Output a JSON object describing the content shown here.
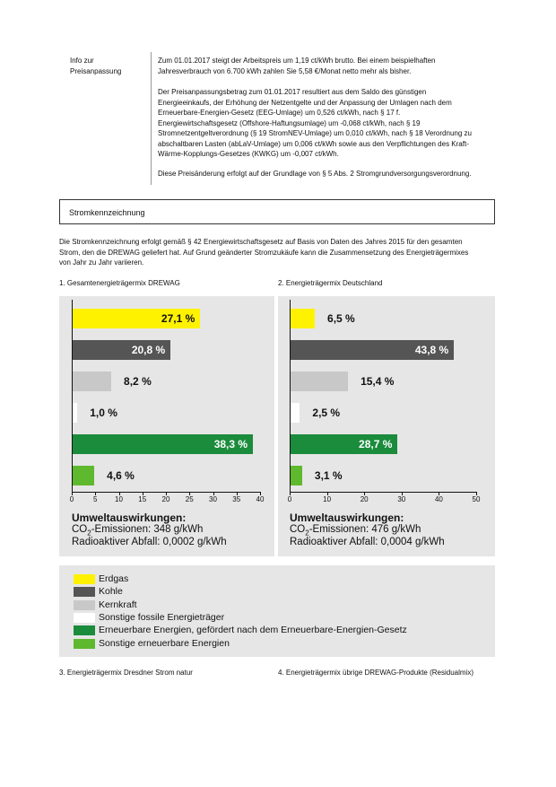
{
  "info": {
    "label_line1": "Info zur",
    "label_line2": "Preisanpassung",
    "p1": [
      "Zum 01.01.2017 steigt der Arbeitspreis um 1,19 ct/kWh brutto. Bei einem beispielhaften",
      "Jahresverbrauch von 6.700 kWh zahlen Sie 5,58 €/Monat netto mehr als bisher."
    ],
    "p2": [
      "Der Preisanpassungsbetrag zum 01.01.2017 resultiert aus dem Saldo des günstigen",
      "Energieeinkaufs, der Erhöhung der Netzentgelte und der Anpassung der Umlagen nach dem",
      "Erneuerbare-Energien-Gesetz (EEG-Umlage) um 0,526 ct/kWh, nach § 17 f.",
      "Energiewirtschaftsgesetz (Offshore-Haftungsumlage) um -0,068 ct/kWh, nach § 19",
      "Stromnetzentgeltverordnung (§ 19 StromNEV-Umlage) um 0,010 ct/kWh, nach § 18 Verordnung zu",
      "abschaltbaren Lasten (abLaV-Umlage) um 0,006 ct/kWh sowie aus den Verpflichtungen des Kraft-",
      "Wärme-Kopplungs-Gesetzes (KWKG) um -0,007 ct/kWh."
    ],
    "p3": "Diese Preisänderung erfolgt auf der Grundlage von § 5 Abs. 2 Stromgrundversorgungsverordnung."
  },
  "section_title": "Stromkennzeichnung",
  "intro": [
    "Die Stromkennzeichnung erfolgt gemäß § 42 Energiewirtschaftsgesetz auf Basis von Daten des Jahres 2015 für den gesamten",
    "Strom, den die DREWAG geliefert hat. Auf Grund geänderter Stromzukäufe kann die Zusammensetzung des Energieträgermixes",
    "von Jahr zu Jahr variieren."
  ],
  "charts": {
    "chart1_title": "1.  Gesamtenergieträgermix DREWAG",
    "chart2_title": "2.  Energieträgermix Deutschland",
    "env_title": "Umweltauswirkungen:",
    "co2_prefix": "CO",
    "co2_sub": "2",
    "co2_label": "-Emissionen:",
    "rad_label": "Radioaktiver Abfall:",
    "chart1_co2": "348 g/kWh",
    "chart1_rad": "0,0002 g/kWh",
    "chart2_co2": "476 g/kWh",
    "chart2_rad": "0,0004 g/kWh"
  },
  "chart_data": [
    {
      "type": "bar",
      "orientation": "horizontal",
      "title": "1.  Gesamtenergieträgermix DREWAG",
      "categories": [
        "Erdgas",
        "Kohle",
        "Kernkraft",
        "Sonstige fossile Energieträger",
        "Erneuerbare Energien, gefördert nach dem Erneuerbare-Energien-Gesetz",
        "Sonstige erneuerbare Energien"
      ],
      "values": [
        27.1,
        20.8,
        8.2,
        1.0,
        38.3,
        4.6
      ],
      "labels": [
        "27,1 %",
        "20,8 %",
        "8,2 %",
        "1,0 %",
        "38,3 %",
        "4,6 %"
      ],
      "xlim": [
        0,
        40
      ],
      "xticks": [
        "0",
        "5",
        "10",
        "15",
        "20",
        "25",
        "30",
        "35",
        "40"
      ],
      "xtick_values": [
        0,
        5,
        10,
        15,
        20,
        25,
        30,
        35,
        40
      ]
    },
    {
      "type": "bar",
      "orientation": "horizontal",
      "title": "2.  Energieträgermix Deutschland",
      "categories": [
        "Erdgas",
        "Kohle",
        "Kernkraft",
        "Sonstige fossile Energieträger",
        "Erneuerbare Energien, gefördert nach dem Erneuerbare-Energien-Gesetz",
        "Sonstige erneuerbare Energien"
      ],
      "values": [
        6.5,
        43.8,
        15.4,
        2.5,
        28.7,
        3.1
      ],
      "labels": [
        "6,5 %",
        "43,8 %",
        "15,4 %",
        "2,5 %",
        "28,7 %",
        "3,1 %"
      ],
      "xlim": [
        0,
        50
      ],
      "xticks": [
        "0",
        "10",
        "20",
        "30",
        "40",
        "50"
      ],
      "xtick_values": [
        0,
        10,
        20,
        30,
        40,
        50
      ]
    }
  ],
  "colors": {
    "erdgas": "#fff200",
    "kohle": "#555555",
    "kernkraft": "#c8c8c8",
    "sonstige_fossile": "#ffffff",
    "eeg": "#1a8c3c",
    "sonstige_erneuerbare": "#5fb92e"
  },
  "legend": [
    {
      "label": "Erdgas",
      "color": "#fff200"
    },
    {
      "label": "Kohle",
      "color": "#555555"
    },
    {
      "label": "Kernkraft",
      "color": "#c8c8c8"
    },
    {
      "label": "Sonstige fossile Energieträger",
      "color": "#ffffff"
    },
    {
      "label": "Erneuerbare Energien, gefördert nach dem Erneuerbare-Energien-Gesetz",
      "color": "#1a8c3c"
    },
    {
      "label": "Sonstige erneuerbare Energien",
      "color": "#5fb92e"
    }
  ],
  "footer": {
    "chart3_title": "3.  Energieträgermix Dresdner Strom natur",
    "chart4_title": "4.  Energieträgermix übrige DREWAG-Produkte (Residualmix)"
  }
}
